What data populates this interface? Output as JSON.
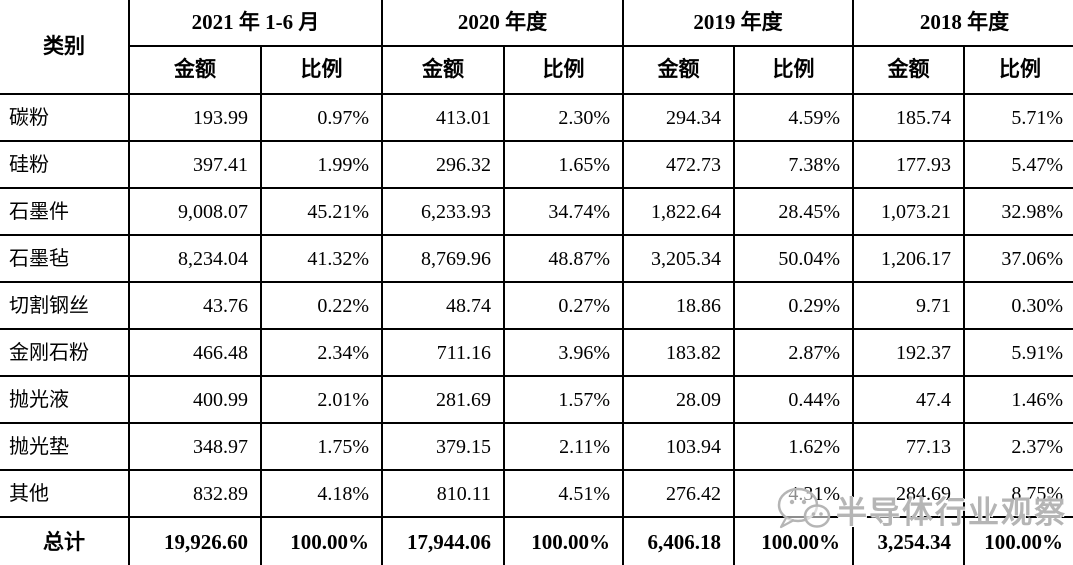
{
  "table": {
    "category_header": "类别",
    "amount_header": "金额",
    "ratio_header": "比例",
    "period_headers": [
      "2021 年 1-6 月",
      "2020 年度",
      "2019 年度",
      "2018 年度"
    ],
    "rows": [
      {
        "category": "碳粉",
        "values": [
          "193.99",
          "0.97%",
          "413.01",
          "2.30%",
          "294.34",
          "4.59%",
          "185.74",
          "5.71%"
        ]
      },
      {
        "category": "硅粉",
        "values": [
          "397.41",
          "1.99%",
          "296.32",
          "1.65%",
          "472.73",
          "7.38%",
          "177.93",
          "5.47%"
        ]
      },
      {
        "category": "石墨件",
        "values": [
          "9,008.07",
          "45.21%",
          "6,233.93",
          "34.74%",
          "1,822.64",
          "28.45%",
          "1,073.21",
          "32.98%"
        ]
      },
      {
        "category": "石墨毡",
        "values": [
          "8,234.04",
          "41.32%",
          "8,769.96",
          "48.87%",
          "3,205.34",
          "50.04%",
          "1,206.17",
          "37.06%"
        ]
      },
      {
        "category": "切割钢丝",
        "values": [
          "43.76",
          "0.22%",
          "48.74",
          "0.27%",
          "18.86",
          "0.29%",
          "9.71",
          "0.30%"
        ]
      },
      {
        "category": "金刚石粉",
        "values": [
          "466.48",
          "2.34%",
          "711.16",
          "3.96%",
          "183.82",
          "2.87%",
          "192.37",
          "5.91%"
        ]
      },
      {
        "category": "抛光液",
        "values": [
          "400.99",
          "2.01%",
          "281.69",
          "1.57%",
          "28.09",
          "0.44%",
          "47.4",
          "1.46%"
        ]
      },
      {
        "category": "抛光垫",
        "values": [
          "348.97",
          "1.75%",
          "379.15",
          "2.11%",
          "103.94",
          "1.62%",
          "77.13",
          "2.37%"
        ]
      },
      {
        "category": "其他",
        "values": [
          "832.89",
          "4.18%",
          "810.11",
          "4.51%",
          "276.42",
          "4.31%",
          "284.69",
          "8.75%"
        ]
      }
    ],
    "total_row": {
      "category": "总计",
      "values": [
        "19,926.60",
        "100.00%",
        "17,944.06",
        "100.00%",
        "6,406.18",
        "100.00%",
        "3,254.34",
        "100.00%"
      ]
    }
  },
  "watermark": {
    "text": "半导体行业观察",
    "icon": "wechat-icon",
    "color": "#b5b5b5"
  }
}
